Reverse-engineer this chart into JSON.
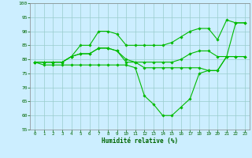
{
  "title": "",
  "xlabel": "Humidité relative (%)",
  "bg_color": "#cceeff",
  "grid_color": "#99cccc",
  "line_color": "#00bb00",
  "xlim": [
    -0.5,
    23.5
  ],
  "ylim": [
    55,
    100
  ],
  "yticks": [
    55,
    60,
    65,
    70,
    75,
    80,
    85,
    90,
    95,
    100
  ],
  "xticks": [
    0,
    1,
    2,
    3,
    4,
    5,
    6,
    7,
    8,
    9,
    10,
    11,
    12,
    13,
    14,
    15,
    16,
    17,
    18,
    19,
    20,
    21,
    22,
    23
  ],
  "series": [
    [
      79,
      79,
      79,
      79,
      81,
      85,
      85,
      90,
      90,
      89,
      85,
      85,
      85,
      85,
      85,
      86,
      88,
      90,
      91,
      91,
      87,
      94,
      93,
      93
    ],
    [
      79,
      79,
      79,
      79,
      81,
      82,
      82,
      84,
      84,
      83,
      80,
      79,
      79,
      79,
      79,
      79,
      80,
      82,
      83,
      83,
      81,
      81,
      81,
      81
    ],
    [
      79,
      79,
      79,
      79,
      81,
      82,
      82,
      84,
      84,
      83,
      79,
      79,
      77,
      77,
      77,
      77,
      77,
      77,
      77,
      76,
      76,
      81,
      81,
      81
    ],
    [
      79,
      78,
      78,
      78,
      78,
      78,
      78,
      78,
      78,
      78,
      78,
      77,
      67,
      64,
      60,
      60,
      63,
      66,
      75,
      76,
      76,
      81,
      93,
      93
    ]
  ]
}
